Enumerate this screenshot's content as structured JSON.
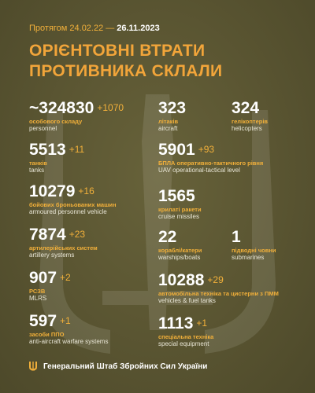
{
  "header": {
    "period_prefix": "Протягом 24.02.22",
    "period_dash": "—",
    "period_end": "26.11.2023",
    "title_line1": "ОРІЄНТОВНІ ВТРАТИ",
    "title_line2": "ПРОТИВНИКА СКЛАЛИ"
  },
  "stats": {
    "personnel": {
      "value": "~324830",
      "delta": "+1070",
      "ua": "особового складу",
      "en": "personnel"
    },
    "tanks": {
      "value": "5513",
      "delta": "+11",
      "ua": "танків",
      "en": "tanks"
    },
    "apv": {
      "value": "10279",
      "delta": "+16",
      "ua": "бойових броньованих машин",
      "en": "armoured personnel vehicle"
    },
    "artillery": {
      "value": "7874",
      "delta": "+23",
      "ua": "артилерійських систем",
      "en": "artillery systems"
    },
    "mlrs": {
      "value": "907",
      "delta": "+2",
      "ua": "РСЗВ",
      "en": "MLRS"
    },
    "aa": {
      "value": "597",
      "delta": "+1",
      "ua": "засоби ППО",
      "en": "anti-aircraft warfare systems"
    },
    "aircraft": {
      "value": "323",
      "delta": "",
      "ua": "літаків",
      "en": "aircraft"
    },
    "helicopters": {
      "value": "324",
      "delta": "",
      "ua": "гелікоптерів",
      "en": "helicopters"
    },
    "uav": {
      "value": "5901",
      "delta": "+93",
      "ua": "БПЛА оперативно-тактичного рівня",
      "en": "UAV operational-tactical level"
    },
    "cruise": {
      "value": "1565",
      "delta": "",
      "ua": "крилаті ракети",
      "en": "cruise missiles"
    },
    "warships": {
      "value": "22",
      "delta": "",
      "ua": "кораблі/катери",
      "en": "warships/boats"
    },
    "submarines": {
      "value": "1",
      "delta": "",
      "ua": "підводні човни",
      "en": "submarines"
    },
    "vehicles": {
      "value": "10288",
      "delta": "+29",
      "ua": "автомобільна техніка та цистерни з ПММ",
      "en": "vehicles & fuel tanks"
    },
    "special": {
      "value": "1113",
      "delta": "+1",
      "ua": "спеціальна техніка",
      "en": "special equipment"
    }
  },
  "footer": {
    "text": "Генеральний Штаб Збройних Сил України",
    "emblem": "trident-icon"
  },
  "colors": {
    "background": "#5a5530",
    "accent": "#f2a53a",
    "text": "#ffffff"
  }
}
